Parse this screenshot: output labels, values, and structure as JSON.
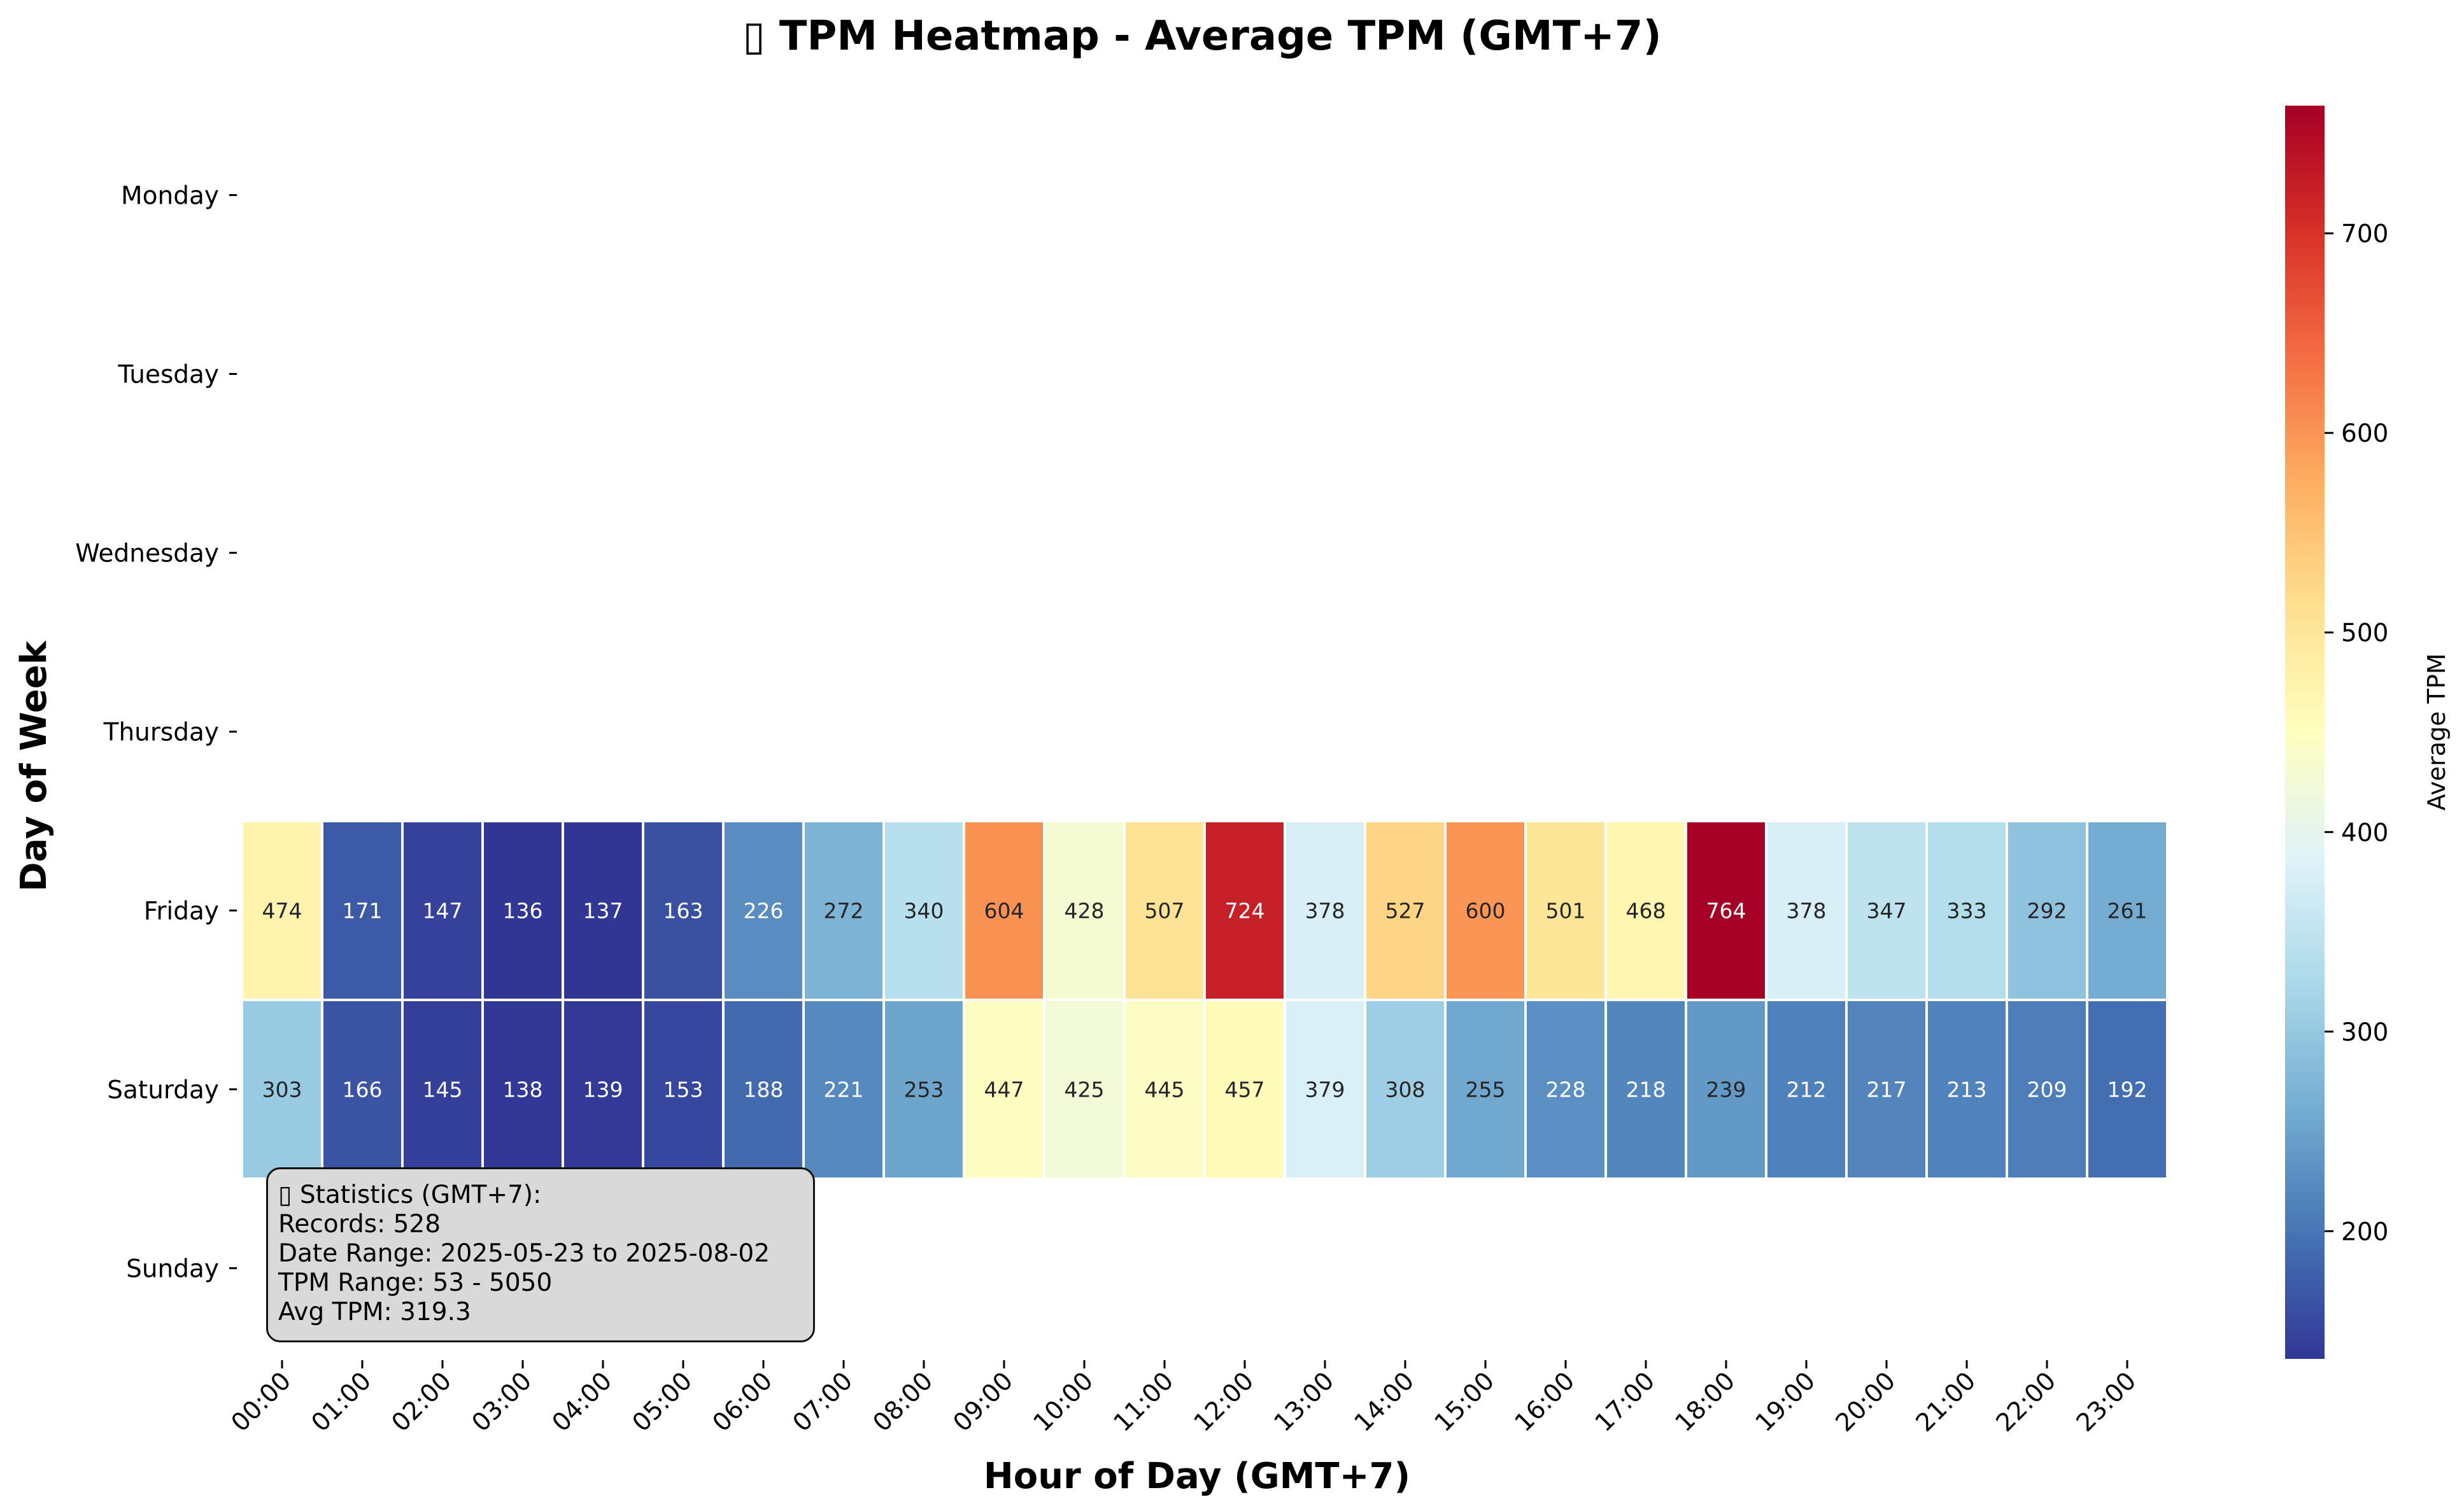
{
  "chart_data": {
    "type": "heatmap",
    "title": "▯ TPM Heatmap - Average TPM (GMT+7)",
    "xlabel": "Hour of Day (GMT+7)",
    "ylabel": "Day of Week",
    "x": [
      "00:00",
      "01:00",
      "02:00",
      "03:00",
      "04:00",
      "05:00",
      "06:00",
      "07:00",
      "08:00",
      "09:00",
      "10:00",
      "11:00",
      "12:00",
      "13:00",
      "14:00",
      "15:00",
      "16:00",
      "17:00",
      "18:00",
      "19:00",
      "20:00",
      "21:00",
      "22:00",
      "23:00"
    ],
    "y": [
      "Monday",
      "Tuesday",
      "Wednesday",
      "Thursday",
      "Friday",
      "Saturday",
      "Sunday"
    ],
    "values": [
      [
        null,
        null,
        null,
        null,
        null,
        null,
        null,
        null,
        null,
        null,
        null,
        null,
        null,
        null,
        null,
        null,
        null,
        null,
        null,
        null,
        null,
        null,
        null,
        null
      ],
      [
        null,
        null,
        null,
        null,
        null,
        null,
        null,
        null,
        null,
        null,
        null,
        null,
        null,
        null,
        null,
        null,
        null,
        null,
        null,
        null,
        null,
        null,
        null,
        null
      ],
      [
        null,
        null,
        null,
        null,
        null,
        null,
        null,
        null,
        null,
        null,
        null,
        null,
        null,
        null,
        null,
        null,
        null,
        null,
        null,
        null,
        null,
        null,
        null,
        null
      ],
      [
        null,
        null,
        null,
        null,
        null,
        null,
        null,
        null,
        null,
        null,
        null,
        null,
        null,
        null,
        null,
        null,
        null,
        null,
        null,
        null,
        null,
        null,
        null,
        null
      ],
      [
        474,
        171,
        147,
        136,
        137,
        163,
        226,
        272,
        340,
        604,
        428,
        507,
        724,
        378,
        527,
        600,
        501,
        468,
        764,
        378,
        347,
        333,
        292,
        261
      ],
      [
        303,
        166,
        145,
        138,
        139,
        153,
        188,
        221,
        253,
        447,
        425,
        445,
        457,
        379,
        308,
        255,
        228,
        218,
        239,
        212,
        217,
        213,
        209,
        192
      ],
      [
        null,
        null,
        null,
        null,
        null,
        null,
        null,
        null,
        null,
        null,
        null,
        null,
        null,
        null,
        null,
        null,
        null,
        null,
        null,
        null,
        null,
        null,
        null,
        null
      ]
    ],
    "colorbar": {
      "label": "Average TPM",
      "min": 136,
      "max": 764,
      "ticks": [
        200,
        300,
        400,
        500,
        600,
        700
      ],
      "colormap": "RdYlBu_r"
    }
  },
  "stats": {
    "title": "▯ Statistics (GMT+7):",
    "records": "Records: 528",
    "date_range": "Date Range: 2025-05-23 to 2025-08-02",
    "tpm_range": "TPM Range: 53 - 5050",
    "avg_tpm": "Avg TPM: 319.3"
  }
}
